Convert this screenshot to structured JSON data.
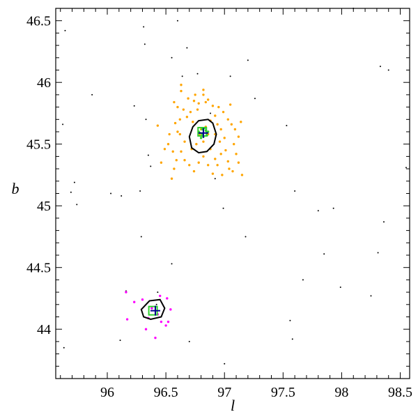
{
  "chart_data": {
    "type": "scatter",
    "xlabel": "l",
    "ylabel": "b",
    "xlim": [
      95.56,
      98.58
    ],
    "ylim": [
      43.6,
      46.6
    ],
    "x_ticks": [
      96,
      96.5,
      97,
      97.5,
      98,
      98.5
    ],
    "y_ticks": [
      44,
      44.5,
      45,
      45.5,
      46,
      46.5
    ],
    "x_tick_labels": [
      "96",
      "96.5",
      "97",
      "97.5",
      "98",
      "98.5"
    ],
    "y_tick_labels": [
      "44",
      "44.5",
      "45",
      "45.5",
      "46",
      "46.5"
    ],
    "grid": false,
    "series": [
      {
        "role": "field stars",
        "color": "#000000",
        "marker": "dot-small",
        "points": [
          [
            95.64,
            46.42
          ],
          [
            95.62,
            45.66
          ],
          [
            95.69,
            45.11
          ],
          [
            95.72,
            45.19
          ],
          [
            95.74,
            45.01
          ],
          [
            95.63,
            43.85
          ],
          [
            95.87,
            45.9
          ],
          [
            96.03,
            45.1
          ],
          [
            96.12,
            45.08
          ],
          [
            96.11,
            43.91
          ],
          [
            96.16,
            44.31
          ],
          [
            96.23,
            45.81
          ],
          [
            96.28,
            45.12
          ],
          [
            96.29,
            44.75
          ],
          [
            96.31,
            46.45
          ],
          [
            96.32,
            46.31
          ],
          [
            96.33,
            45.7
          ],
          [
            96.35,
            45.41
          ],
          [
            96.37,
            45.32
          ],
          [
            96.42,
            44.2
          ],
          [
            96.43,
            44.3
          ],
          [
            96.55,
            46.2
          ],
          [
            96.55,
            44.53
          ],
          [
            96.6,
            46.5
          ],
          [
            96.64,
            46.05
          ],
          [
            96.68,
            46.28
          ],
          [
            96.7,
            43.9
          ],
          [
            96.77,
            46.07
          ],
          [
            96.88,
            45.75
          ],
          [
            96.92,
            45.22
          ],
          [
            96.99,
            44.98
          ],
          [
            97.0,
            43.72
          ],
          [
            97.05,
            46.05
          ],
          [
            97.2,
            46.18
          ],
          [
            97.18,
            44.75
          ],
          [
            97.26,
            45.87
          ],
          [
            97.53,
            45.65
          ],
          [
            97.56,
            44.07
          ],
          [
            97.58,
            43.92
          ],
          [
            97.6,
            45.12
          ],
          [
            97.67,
            44.4
          ],
          [
            97.8,
            44.96
          ],
          [
            97.85,
            44.61
          ],
          [
            97.93,
            44.98
          ],
          [
            97.99,
            44.34
          ],
          [
            98.1,
            46.6
          ],
          [
            98.25,
            44.27
          ],
          [
            98.31,
            44.62
          ],
          [
            98.33,
            46.13
          ],
          [
            98.36,
            44.87
          ],
          [
            98.4,
            46.1
          ],
          [
            98.55,
            45.31
          ]
        ]
      },
      {
        "role": "cluster 1 members",
        "color": "#ffa500",
        "marker": "dot",
        "points": [
          [
            96.63,
            45.98
          ],
          [
            96.63,
            45.93
          ],
          [
            96.69,
            45.87
          ],
          [
            96.74,
            45.85
          ],
          [
            96.78,
            45.83
          ],
          [
            96.84,
            45.84
          ],
          [
            96.9,
            45.81
          ],
          [
            96.82,
            45.94
          ],
          [
            96.82,
            45.9
          ],
          [
            96.86,
            45.86
          ],
          [
            96.95,
            45.8
          ],
          [
            96.99,
            45.76
          ],
          [
            96.57,
            45.84
          ],
          [
            96.6,
            45.8
          ],
          [
            96.65,
            45.78
          ],
          [
            96.71,
            45.76
          ],
          [
            96.77,
            45.78
          ],
          [
            96.92,
            45.73
          ],
          [
            97.03,
            45.7
          ],
          [
            97.06,
            45.66
          ],
          [
            97.09,
            45.62
          ],
          [
            97.14,
            45.68
          ],
          [
            97.12,
            45.56
          ],
          [
            97.08,
            45.5
          ],
          [
            97.1,
            45.42
          ],
          [
            97.12,
            45.35
          ],
          [
            97.07,
            45.28
          ],
          [
            97.03,
            45.36
          ],
          [
            97.01,
            45.45
          ],
          [
            97.0,
            45.55
          ],
          [
            96.97,
            45.62
          ],
          [
            96.97,
            45.42
          ],
          [
            96.94,
            45.33
          ],
          [
            96.9,
            45.26
          ],
          [
            96.86,
            45.33
          ],
          [
            96.82,
            45.4
          ],
          [
            96.78,
            45.35
          ],
          [
            96.74,
            45.28
          ],
          [
            96.7,
            45.33
          ],
          [
            96.66,
            45.37
          ],
          [
            96.63,
            45.44
          ],
          [
            96.59,
            45.37
          ],
          [
            96.55,
            45.22
          ],
          [
            96.56,
            45.44
          ],
          [
            96.52,
            45.5
          ],
          [
            96.53,
            45.58
          ],
          [
            96.49,
            45.46
          ],
          [
            96.46,
            45.35
          ],
          [
            96.43,
            45.65
          ],
          [
            96.58,
            45.67
          ],
          [
            96.62,
            45.7
          ],
          [
            96.68,
            45.72
          ],
          [
            96.73,
            45.68
          ],
          [
            96.88,
            45.69
          ],
          [
            96.94,
            45.66
          ],
          [
            96.92,
            45.58
          ],
          [
            96.96,
            45.52
          ],
          [
            96.66,
            45.52
          ],
          [
            96.62,
            45.58
          ],
          [
            96.72,
            45.46
          ],
          [
            96.76,
            45.5
          ],
          [
            96.88,
            45.46
          ],
          [
            96.92,
            45.38
          ],
          [
            96.79,
            45.58
          ],
          [
            96.86,
            45.58
          ],
          [
            96.82,
            45.52
          ],
          [
            96.8,
            45.62
          ],
          [
            96.84,
            45.64
          ],
          [
            97.04,
            45.3
          ],
          [
            96.98,
            45.25
          ],
          [
            97.05,
            45.82
          ],
          [
            96.75,
            45.9
          ],
          [
            96.6,
            45.6
          ],
          [
            96.57,
            45.3
          ],
          [
            97.15,
            45.25
          ]
        ]
      },
      {
        "role": "cluster 1 core",
        "color": "#2fcf2f",
        "marker": "dot",
        "points": [
          [
            96.79,
            45.59
          ],
          [
            96.81,
            45.62
          ],
          [
            96.84,
            45.61
          ],
          [
            96.85,
            45.57
          ],
          [
            96.82,
            45.56
          ],
          [
            96.8,
            45.55
          ],
          [
            96.78,
            45.6
          ],
          [
            96.83,
            45.63
          ],
          [
            96.86,
            45.6
          ],
          [
            96.81,
            45.58
          ]
        ]
      },
      {
        "role": "cluster 2 members",
        "color": "#ff00ff",
        "marker": "dot",
        "points": [
          [
            96.16,
            44.3
          ],
          [
            96.23,
            44.22
          ],
          [
            96.3,
            44.24
          ],
          [
            96.45,
            44.27
          ],
          [
            96.51,
            44.25
          ],
          [
            96.54,
            44.16
          ],
          [
            96.52,
            44.06
          ],
          [
            96.5,
            44.03
          ],
          [
            96.46,
            44.06
          ],
          [
            96.35,
            44.09
          ],
          [
            96.33,
            44.0
          ],
          [
            96.41,
            43.93
          ],
          [
            96.17,
            44.08
          ],
          [
            96.43,
            44.12
          ],
          [
            96.38,
            44.17
          ]
        ]
      }
    ],
    "contours": [
      {
        "role": "cluster 1 boundary",
        "color": "#000000",
        "points": [
          [
            96.78,
            45.69
          ],
          [
            96.86,
            45.7
          ],
          [
            96.9,
            45.67
          ],
          [
            96.93,
            45.58
          ],
          [
            96.91,
            45.5
          ],
          [
            96.85,
            45.44
          ],
          [
            96.78,
            45.43
          ],
          [
            96.72,
            45.47
          ],
          [
            96.7,
            45.56
          ],
          [
            96.73,
            45.64
          ]
        ]
      },
      {
        "role": "cluster 2 boundary",
        "color": "#000000",
        "points": [
          [
            96.36,
            44.23
          ],
          [
            96.45,
            44.24
          ],
          [
            96.49,
            44.17
          ],
          [
            96.46,
            44.1
          ],
          [
            96.37,
            44.08
          ],
          [
            96.31,
            44.1
          ],
          [
            96.29,
            44.16
          ]
        ]
      }
    ],
    "markers": [
      {
        "role": "cluster 1 center",
        "symbol": "square",
        "color": "#2fcf2f",
        "x": 96.81,
        "y": 45.6
      },
      {
        "role": "cluster 1 center",
        "symbol": "plus",
        "color": "#00008b",
        "x": 96.82,
        "y": 45.59
      },
      {
        "role": "cluster 2 center",
        "symbol": "square",
        "color": "#2fcf2f",
        "x": 96.39,
        "y": 44.15
      },
      {
        "role": "cluster 2 center",
        "symbol": "plus",
        "color": "#00008b",
        "x": 96.41,
        "y": 44.15
      }
    ]
  }
}
